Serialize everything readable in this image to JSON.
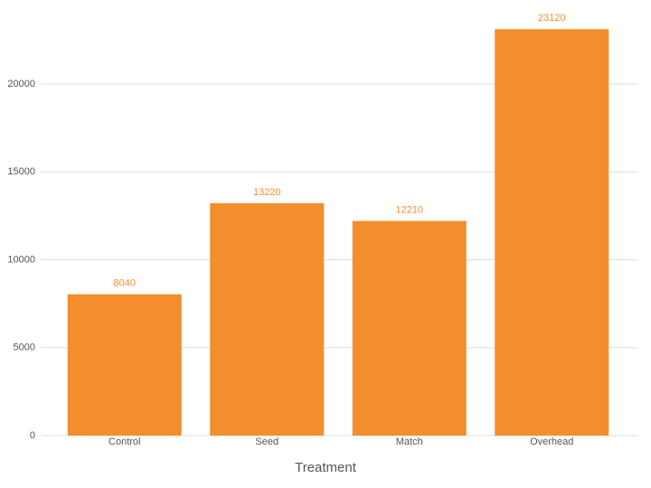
{
  "chart_data": {
    "type": "bar",
    "x_label": "Treatment",
    "categories": [
      "Control",
      "Seed",
      "Match",
      "Overhead"
    ],
    "values": [
      8040,
      13220,
      12210,
      23120
    ],
    "color": "#f28e2b",
    "ylim": [
      0,
      24000
    ],
    "yticks": [
      0,
      5000,
      10000,
      15000,
      20000
    ],
    "grid": true
  }
}
